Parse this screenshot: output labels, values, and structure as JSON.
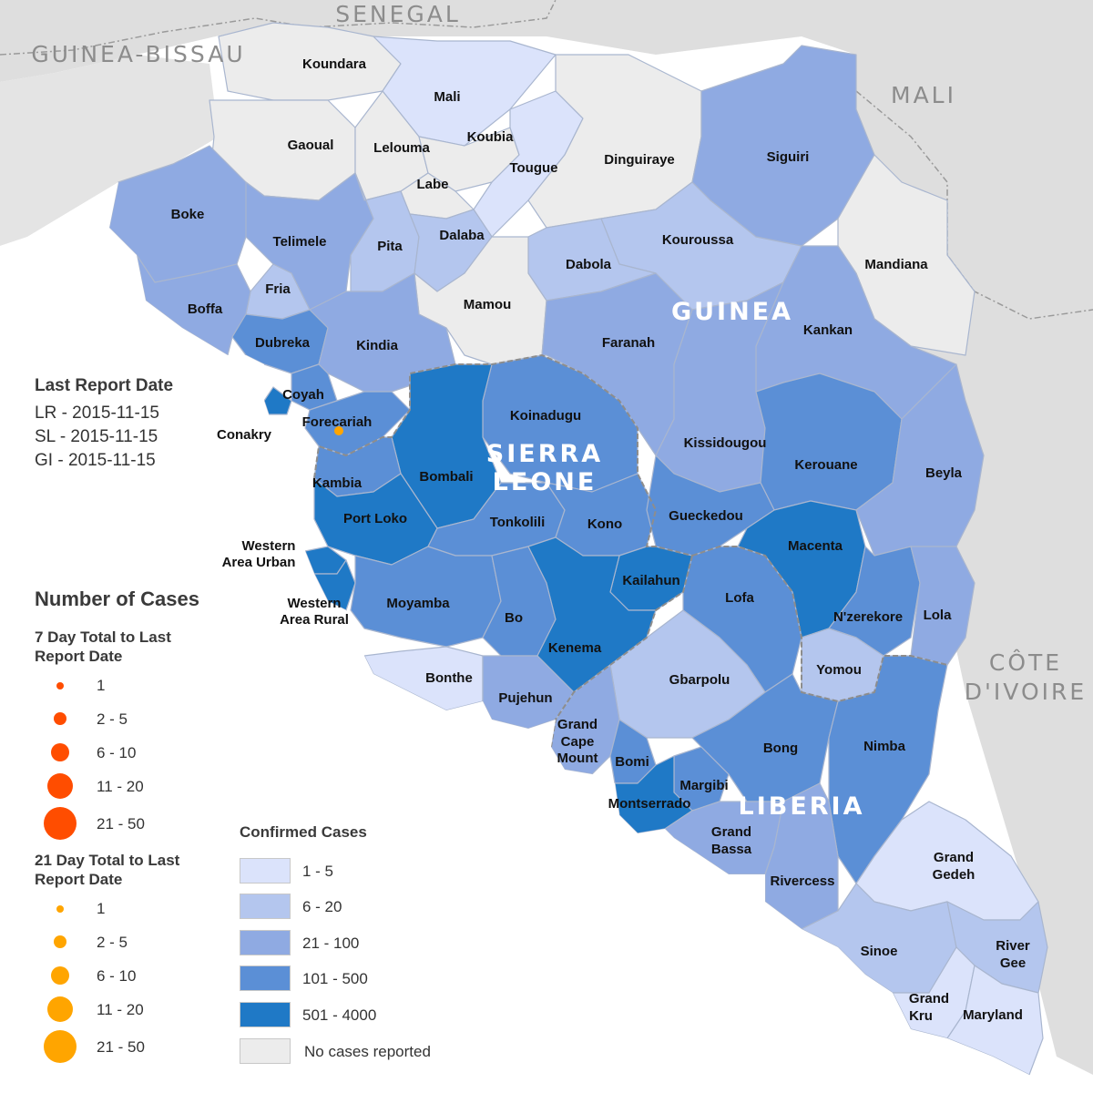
{
  "countries": {
    "senegal": "SENEGAL",
    "guinea_bissau": "GUINEA-BISSAU",
    "mali": "MALI",
    "cote_divoire_1": "CÔTE",
    "cote_divoire_2": "D'IVOIRE",
    "guinea": "GUINEA",
    "sierra_leone_1": "SIERRA",
    "sierra_leone_2": "LEONE",
    "liberia": "LIBERIA"
  },
  "districts": [
    {
      "name": "Koundara",
      "cls": 0
    },
    {
      "name": "Mali",
      "cls": 1
    },
    {
      "name": "Gaoual",
      "cls": 0
    },
    {
      "name": "Lelouma",
      "cls": 0
    },
    {
      "name": "Koubia",
      "cls": 0
    },
    {
      "name": "Labe",
      "cls": 0
    },
    {
      "name": "Tougue",
      "cls": 1
    },
    {
      "name": "Dinguiraye",
      "cls": 0
    },
    {
      "name": "Siguiri",
      "cls": 3
    },
    {
      "name": "Boke",
      "cls": 3
    },
    {
      "name": "Telimele",
      "cls": 3
    },
    {
      "name": "Pita",
      "cls": 2
    },
    {
      "name": "Dalaba",
      "cls": 2
    },
    {
      "name": "Kouroussa",
      "cls": 2
    },
    {
      "name": "Dabola",
      "cls": 2
    },
    {
      "name": "Mandiana",
      "cls": 0
    },
    {
      "name": "Fria",
      "cls": 2
    },
    {
      "name": "Mamou",
      "cls": 0
    },
    {
      "name": "Boffa",
      "cls": 3
    },
    {
      "name": "Kankan",
      "cls": 3
    },
    {
      "name": "Dubreka",
      "cls": 4
    },
    {
      "name": "Kindia",
      "cls": 3
    },
    {
      "name": "Faranah",
      "cls": 3
    },
    {
      "name": "Coyah",
      "cls": 4
    },
    {
      "name": "Forecariah",
      "cls": 4
    },
    {
      "name": "Conakry",
      "cls": 5
    },
    {
      "name": "Koinadugu",
      "cls": 4
    },
    {
      "name": "Kissidougou",
      "cls": 3
    },
    {
      "name": "Kerouane",
      "cls": 4
    },
    {
      "name": "Beyla",
      "cls": 3
    },
    {
      "name": "Bombali",
      "cls": 5
    },
    {
      "name": "Kambia",
      "cls": 4
    },
    {
      "name": "Port Loko",
      "cls": 5
    },
    {
      "name": "Tonkolili",
      "cls": 4
    },
    {
      "name": "Kono",
      "cls": 4
    },
    {
      "name": "Gueckedou",
      "cls": 4
    },
    {
      "name": "Macenta",
      "cls": 5
    },
    {
      "name": "Western Area Urban",
      "cls": 5
    },
    {
      "name": "Western Area Rural",
      "cls": 5
    },
    {
      "name": "Moyamba",
      "cls": 4
    },
    {
      "name": "Bo",
      "cls": 4
    },
    {
      "name": "Kailahun",
      "cls": 5
    },
    {
      "name": "Lofa",
      "cls": 4
    },
    {
      "name": "N'zerekore",
      "cls": 4
    },
    {
      "name": "Lola",
      "cls": 3
    },
    {
      "name": "Kenema",
      "cls": 5
    },
    {
      "name": "Bonthe",
      "cls": 1
    },
    {
      "name": "Pujehun",
      "cls": 3
    },
    {
      "name": "Gbarpolu",
      "cls": 2
    },
    {
      "name": "Yomou",
      "cls": 2
    },
    {
      "name": "Grand Cape Mount",
      "cls": 3
    },
    {
      "name": "Bomi",
      "cls": 4
    },
    {
      "name": "Margibi",
      "cls": 4
    },
    {
      "name": "Montserrado",
      "cls": 5
    },
    {
      "name": "Bong",
      "cls": 4
    },
    {
      "name": "Nimba",
      "cls": 4
    },
    {
      "name": "Grand Bassa",
      "cls": 3
    },
    {
      "name": "Rivercess",
      "cls": 3
    },
    {
      "name": "Grand Gedeh",
      "cls": 1
    },
    {
      "name": "Sinoe",
      "cls": 2
    },
    {
      "name": "River Gee",
      "cls": 2
    },
    {
      "name": "Grand Kru",
      "cls": 1
    },
    {
      "name": "Maryland",
      "cls": 1
    }
  ],
  "case_markers": [
    {
      "district": "Forecariah",
      "period": "21 Day",
      "range": "1"
    }
  ],
  "last_report": {
    "title": "Last Report Date",
    "lines": [
      "LR - 2015-11-15",
      "SL - 2015-11-15",
      "GI - 2015-11-15"
    ]
  },
  "legend": {
    "title": "Number of Cases",
    "seven_day_title_1": "7 Day Total to Last",
    "seven_day_title_2": "Report Date",
    "seven_day_color": "#ff4d00",
    "twentyone_day_title_1": "21 Day Total to Last",
    "twentyone_day_title_2": "Report Date",
    "twentyone_day_color": "#ffa500",
    "size_classes": [
      "1",
      "2 - 5",
      "6 - 10",
      "11 - 20",
      "21 - 50"
    ],
    "confirmed_title": "Confirmed Cases",
    "confirmed_classes": [
      {
        "label": "1 - 5",
        "color": "#dbe3fb"
      },
      {
        "label": "6 - 20",
        "color": "#b4c6ee"
      },
      {
        "label": "21 - 100",
        "color": "#8faae2"
      },
      {
        "label": "101 - 500",
        "color": "#5b8fd6"
      },
      {
        "label": "501 - 4000",
        "color": "#1f79c6"
      },
      {
        "label": "No cases reported",
        "color": "#ececec"
      }
    ]
  },
  "colors": {
    "land_other": "#dedede",
    "sea": "#ffffff",
    "no_cases": "#ececec",
    "border": "#8d8d8d"
  }
}
